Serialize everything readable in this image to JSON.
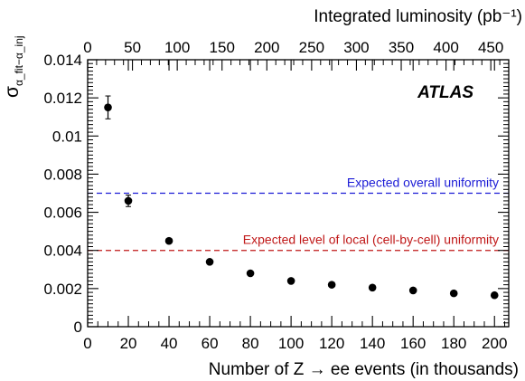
{
  "chart_data": {
    "type": "scatter",
    "experiment_label": "ATLAS",
    "xlabel": "Number of Z → ee events  (in thousands)",
    "xlabel_top": "Integrated luminosity (pb⁻¹)",
    "ylabel": "σ",
    "ylabel_subscript": "α_fit−α_inj",
    "xlim": [
      0,
      207
    ],
    "ylim": [
      0,
      0.014
    ],
    "xlim_top": [
      0,
      470
    ],
    "x_ticks": [
      "0",
      "20",
      "40",
      "60",
      "80",
      "100",
      "120",
      "140",
      "160",
      "180",
      "200"
    ],
    "y_ticks": [
      "0",
      "0.002",
      "0.004",
      "0.006",
      "0.008",
      "0.01",
      "0.012",
      "0.014"
    ],
    "x_top_ticks": [
      "0",
      "50",
      "100",
      "150",
      "200",
      "250",
      "300",
      "350",
      "400",
      "450"
    ],
    "grid": false,
    "series": [
      {
        "points": [
          {
            "x": 10,
            "y": 0.0115,
            "err": 0.0006
          },
          {
            "x": 20,
            "y": 0.0066,
            "err": 0.0003
          },
          {
            "x": 40,
            "y": 0.0045,
            "err": 0
          },
          {
            "x": 60,
            "y": 0.0034,
            "err": 0
          },
          {
            "x": 80,
            "y": 0.0028,
            "err": 0
          },
          {
            "x": 100,
            "y": 0.0024,
            "err": 0
          },
          {
            "x": 120,
            "y": 0.0022,
            "err": 0
          },
          {
            "x": 140,
            "y": 0.00205,
            "err": 0
          },
          {
            "x": 160,
            "y": 0.0019,
            "err": 0
          },
          {
            "x": 180,
            "y": 0.00175,
            "err": 0
          },
          {
            "x": 200,
            "y": 0.00165,
            "err": 0
          }
        ]
      }
    ],
    "reference_lines": [
      {
        "label": "Expected overall uniformity",
        "y": 0.007,
        "color": "#1c1cd6"
      },
      {
        "label": "Expected level of local (cell-by-cell) uniformity",
        "y": 0.004,
        "color": "#c01818"
      }
    ]
  }
}
